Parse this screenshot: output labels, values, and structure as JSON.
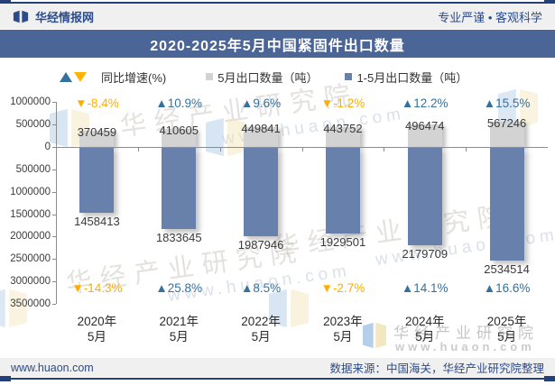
{
  "header": {
    "brand": "华经情报网",
    "slogan": "专业严谨 • 客观科学"
  },
  "title": "2020-2025年5月中国紧固件出口数量",
  "legend": {
    "growth_label": "同比增速(%)",
    "may_label": "5月出口数量（吨）",
    "jan_may_label": "1-5月出口数量（吨）"
  },
  "chart_data": {
    "type": "bar",
    "title": "2020-2025年5月中国紧固件出口数量",
    "categories": [
      {
        "year": "2020年",
        "month": "5月"
      },
      {
        "year": "2021年",
        "month": "5月"
      },
      {
        "year": "2022年",
        "month": "5月"
      },
      {
        "year": "2023年",
        "month": "5月"
      },
      {
        "year": "2024年",
        "month": "5月"
      },
      {
        "year": "2025年",
        "month": "5月"
      }
    ],
    "series": [
      {
        "name": "5月出口数量（吨）",
        "values": [
          370459,
          410605,
          449841,
          443752,
          496474,
          567246
        ],
        "color": "#D3D3D3",
        "direction": "up"
      },
      {
        "name": "1-5月出口数量（吨）",
        "values": [
          1458413,
          1833645,
          1987946,
          1929501,
          2179709,
          2534514
        ],
        "color": "#6781AC",
        "direction": "down"
      },
      {
        "name": "5月同比增速(%)",
        "values": [
          -8.4,
          10.9,
          9.6,
          -1.2,
          12.2,
          15.5
        ]
      },
      {
        "name": "1-5月同比增速(%)",
        "values": [
          -14.3,
          25.8,
          8.5,
          -2.7,
          14.1,
          16.6
        ]
      }
    ],
    "y_axis": {
      "tick_labels": [
        "1000000",
        "500000",
        "0",
        "500000",
        "1000000",
        "1500000",
        "2000000",
        "2500000",
        "3000000",
        "3500000"
      ],
      "tick_unit": 500000,
      "inverted_below_zero": true,
      "grid": false
    },
    "legend_position": "top",
    "colors": {
      "positive": "#35719F",
      "negative": "#FFAE00",
      "bar_may": "#D3D3D3",
      "bar_jan_may": "#6781AC",
      "banner": "#4B6596",
      "frame": "#24407A"
    }
  },
  "watermarks": {
    "org": "华经产业研究院",
    "site": "www.huaon.com"
  },
  "footer": {
    "url": "www.huaon.com",
    "source": "数据来源：中国海关，华经产业研究院整理"
  }
}
